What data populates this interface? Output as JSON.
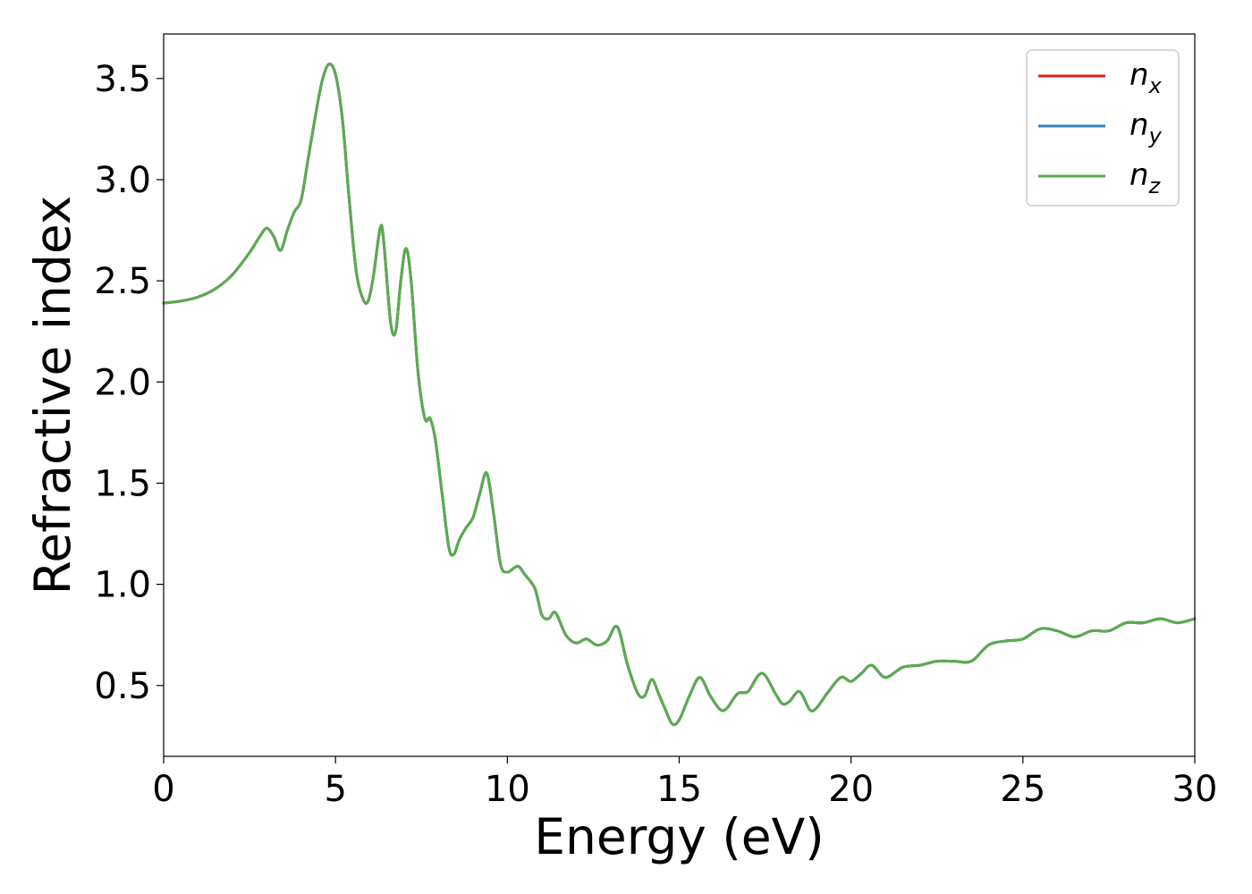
{
  "chart_data": {
    "type": "line",
    "title": "",
    "xlabel": "Energy (eV)",
    "ylabel": "Refractive index",
    "xlim": [
      0,
      30
    ],
    "ylim": [
      0.15,
      3.72
    ],
    "xticks": [
      0,
      5,
      10,
      15,
      20,
      25,
      30
    ],
    "yticks": [
      0.5,
      1.0,
      1.5,
      2.0,
      2.5,
      3.0,
      3.5
    ],
    "grid": false,
    "legend_position": "top-right",
    "x": [
      0,
      0.5,
      1.0,
      1.5,
      2.0,
      2.5,
      2.8,
      3.0,
      3.2,
      3.4,
      3.6,
      3.8,
      4.0,
      4.2,
      4.4,
      4.6,
      4.8,
      5.0,
      5.2,
      5.4,
      5.6,
      5.8,
      5.95,
      6.1,
      6.3,
      6.4,
      6.6,
      6.75,
      6.9,
      7.05,
      7.2,
      7.4,
      7.6,
      7.75,
      7.9,
      8.1,
      8.3,
      8.45,
      8.6,
      8.8,
      9.0,
      9.2,
      9.4,
      9.6,
      9.8,
      10.0,
      10.3,
      10.5,
      10.8,
      11.0,
      11.2,
      11.4,
      11.7,
      12.0,
      12.3,
      12.6,
      12.9,
      13.2,
      13.5,
      13.8,
      14.0,
      14.2,
      14.4,
      14.6,
      14.8,
      15.0,
      15.3,
      15.6,
      15.9,
      16.2,
      16.4,
      16.7,
      17.0,
      17.3,
      17.5,
      17.8,
      18.0,
      18.2,
      18.5,
      18.8,
      19.0,
      19.3,
      19.7,
      20.0,
      20.3,
      20.6,
      21.0,
      21.5,
      22.0,
      22.5,
      23.0,
      23.5,
      24.0,
      24.5,
      25.0,
      25.5,
      26.0,
      26.5,
      27.0,
      27.5,
      28.0,
      28.5,
      29.0,
      29.5,
      30.0
    ],
    "series": [
      {
        "name": "x",
        "color": "#e41a1c",
        "values": [
          2.39,
          2.4,
          2.42,
          2.46,
          2.53,
          2.64,
          2.72,
          2.76,
          2.72,
          2.65,
          2.75,
          2.84,
          2.9,
          3.1,
          3.3,
          3.48,
          3.57,
          3.52,
          3.3,
          2.9,
          2.55,
          2.41,
          2.4,
          2.52,
          2.76,
          2.7,
          2.3,
          2.25,
          2.5,
          2.66,
          2.5,
          2.05,
          1.82,
          1.82,
          1.72,
          1.45,
          1.18,
          1.15,
          1.22,
          1.28,
          1.33,
          1.45,
          1.55,
          1.35,
          1.1,
          1.06,
          1.09,
          1.05,
          0.98,
          0.85,
          0.83,
          0.86,
          0.75,
          0.71,
          0.73,
          0.7,
          0.72,
          0.79,
          0.6,
          0.46,
          0.45,
          0.53,
          0.46,
          0.38,
          0.31,
          0.33,
          0.45,
          0.54,
          0.45,
          0.38,
          0.39,
          0.46,
          0.47,
          0.55,
          0.55,
          0.46,
          0.41,
          0.42,
          0.47,
          0.38,
          0.39,
          0.46,
          0.54,
          0.52,
          0.56,
          0.6,
          0.54,
          0.59,
          0.6,
          0.62,
          0.62,
          0.62,
          0.7,
          0.72,
          0.73,
          0.78,
          0.77,
          0.74,
          0.77,
          0.77,
          0.81,
          0.81,
          0.83,
          0.81,
          0.83
        ]
      },
      {
        "name": "y",
        "color": "#377eb8",
        "values": [
          2.39,
          2.4,
          2.42,
          2.46,
          2.53,
          2.64,
          2.72,
          2.76,
          2.72,
          2.65,
          2.75,
          2.84,
          2.9,
          3.1,
          3.3,
          3.48,
          3.57,
          3.52,
          3.3,
          2.9,
          2.55,
          2.41,
          2.4,
          2.52,
          2.76,
          2.7,
          2.3,
          2.25,
          2.5,
          2.66,
          2.5,
          2.05,
          1.82,
          1.82,
          1.72,
          1.45,
          1.18,
          1.15,
          1.22,
          1.28,
          1.33,
          1.45,
          1.55,
          1.35,
          1.1,
          1.06,
          1.09,
          1.05,
          0.98,
          0.85,
          0.83,
          0.86,
          0.75,
          0.71,
          0.73,
          0.7,
          0.72,
          0.79,
          0.6,
          0.46,
          0.45,
          0.53,
          0.46,
          0.38,
          0.31,
          0.33,
          0.45,
          0.54,
          0.45,
          0.38,
          0.39,
          0.46,
          0.47,
          0.55,
          0.55,
          0.46,
          0.41,
          0.42,
          0.47,
          0.38,
          0.39,
          0.46,
          0.54,
          0.52,
          0.56,
          0.6,
          0.54,
          0.59,
          0.6,
          0.62,
          0.62,
          0.62,
          0.7,
          0.72,
          0.73,
          0.78,
          0.77,
          0.74,
          0.77,
          0.77,
          0.81,
          0.81,
          0.83,
          0.81,
          0.83
        ]
      },
      {
        "name": "z",
        "color": "#5aac4f",
        "values": [
          2.39,
          2.4,
          2.42,
          2.46,
          2.53,
          2.64,
          2.72,
          2.76,
          2.72,
          2.65,
          2.75,
          2.84,
          2.9,
          3.1,
          3.3,
          3.48,
          3.57,
          3.52,
          3.3,
          2.9,
          2.55,
          2.41,
          2.4,
          2.52,
          2.76,
          2.7,
          2.3,
          2.25,
          2.5,
          2.66,
          2.5,
          2.05,
          1.82,
          1.82,
          1.72,
          1.45,
          1.18,
          1.15,
          1.22,
          1.28,
          1.33,
          1.45,
          1.55,
          1.35,
          1.1,
          1.06,
          1.09,
          1.05,
          0.98,
          0.85,
          0.83,
          0.86,
          0.75,
          0.71,
          0.73,
          0.7,
          0.72,
          0.79,
          0.6,
          0.46,
          0.45,
          0.53,
          0.46,
          0.38,
          0.31,
          0.33,
          0.45,
          0.54,
          0.45,
          0.38,
          0.39,
          0.46,
          0.47,
          0.55,
          0.55,
          0.46,
          0.41,
          0.42,
          0.47,
          0.38,
          0.39,
          0.46,
          0.54,
          0.52,
          0.56,
          0.6,
          0.54,
          0.59,
          0.6,
          0.62,
          0.62,
          0.62,
          0.7,
          0.72,
          0.73,
          0.78,
          0.77,
          0.74,
          0.77,
          0.77,
          0.81,
          0.81,
          0.83,
          0.81,
          0.83
        ]
      }
    ],
    "legend": [
      {
        "symbol": "n",
        "subscript": "x",
        "color": "#e41a1c"
      },
      {
        "symbol": "n",
        "subscript": "y",
        "color": "#377eb8"
      },
      {
        "symbol": "n",
        "subscript": "z",
        "color": "#5aac4f"
      }
    ]
  }
}
